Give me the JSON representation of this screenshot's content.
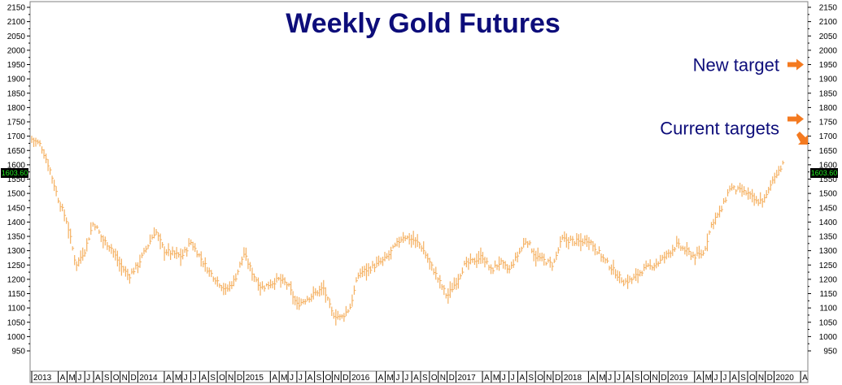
{
  "chart_data": {
    "type": "ohlc",
    "title": "Weekly Gold Futures",
    "ylim": [
      950,
      2150
    ],
    "y_ticks": [
      950,
      1000,
      1050,
      1100,
      1150,
      1200,
      1250,
      1300,
      1350,
      1400,
      1450,
      1500,
      1550,
      1600,
      1650,
      1700,
      1750,
      1800,
      1850,
      1900,
      1950,
      2000,
      2050,
      2100,
      2150
    ],
    "current_price_label": "1603.60",
    "x_month_labels": [
      "2013",
      "A",
      "M",
      "J",
      "J",
      "A",
      "S",
      "O",
      "N",
      "D",
      "2014",
      "A",
      "M",
      "J",
      "J",
      "A",
      "S",
      "O",
      "N",
      "D",
      "2015",
      "A",
      "M",
      "J",
      "J",
      "A",
      "S",
      "O",
      "N",
      "D",
      "2016",
      "A",
      "M",
      "J",
      "J",
      "A",
      "S",
      "O",
      "N",
      "D",
      "2017",
      "A",
      "M",
      "J",
      "J",
      "A",
      "S",
      "O",
      "N",
      "D",
      "2018",
      "A",
      "M",
      "J",
      "J",
      "A",
      "S",
      "O",
      "N",
      "D",
      "2019",
      "A",
      "M",
      "J",
      "J",
      "A",
      "S",
      "O",
      "N",
      "D",
      "2020",
      "A"
    ],
    "series": [
      {
        "color": "#f5b060",
        "waypoints": [
          {
            "date": "2013-01",
            "value": 1690
          },
          {
            "date": "2013-02",
            "value": 1670
          },
          {
            "date": "2013-03",
            "value": 1590
          },
          {
            "date": "2013-04",
            "value": 1480
          },
          {
            "date": "2013-05",
            "value": 1400
          },
          {
            "date": "2013-06",
            "value": 1250
          },
          {
            "date": "2013-07",
            "value": 1300
          },
          {
            "date": "2013-08",
            "value": 1400
          },
          {
            "date": "2013-09",
            "value": 1340
          },
          {
            "date": "2013-10",
            "value": 1310
          },
          {
            "date": "2013-11",
            "value": 1250
          },
          {
            "date": "2013-12",
            "value": 1210
          },
          {
            "date": "2014-01",
            "value": 1250
          },
          {
            "date": "2014-03",
            "value": 1370
          },
          {
            "date": "2014-04",
            "value": 1300
          },
          {
            "date": "2014-06",
            "value": 1280
          },
          {
            "date": "2014-07",
            "value": 1330
          },
          {
            "date": "2014-09",
            "value": 1230
          },
          {
            "date": "2014-11",
            "value": 1160
          },
          {
            "date": "2014-12",
            "value": 1200
          },
          {
            "date": "2015-01",
            "value": 1290
          },
          {
            "date": "2015-02",
            "value": 1220
          },
          {
            "date": "2015-03",
            "value": 1170
          },
          {
            "date": "2015-05",
            "value": 1200
          },
          {
            "date": "2015-06",
            "value": 1180
          },
          {
            "date": "2015-07",
            "value": 1110
          },
          {
            "date": "2015-08",
            "value": 1130
          },
          {
            "date": "2015-10",
            "value": 1170
          },
          {
            "date": "2015-11",
            "value": 1080
          },
          {
            "date": "2015-12",
            "value": 1065
          },
          {
            "date": "2016-01",
            "value": 1100
          },
          {
            "date": "2016-02",
            "value": 1220
          },
          {
            "date": "2016-04",
            "value": 1250
          },
          {
            "date": "2016-05",
            "value": 1270
          },
          {
            "date": "2016-07",
            "value": 1350
          },
          {
            "date": "2016-08",
            "value": 1340
          },
          {
            "date": "2016-09",
            "value": 1320
          },
          {
            "date": "2016-10",
            "value": 1260
          },
          {
            "date": "2016-11",
            "value": 1200
          },
          {
            "date": "2016-12",
            "value": 1140
          },
          {
            "date": "2017-01",
            "value": 1190
          },
          {
            "date": "2017-02",
            "value": 1250
          },
          {
            "date": "2017-04",
            "value": 1280
          },
          {
            "date": "2017-05",
            "value": 1230
          },
          {
            "date": "2017-06",
            "value": 1260
          },
          {
            "date": "2017-07",
            "value": 1230
          },
          {
            "date": "2017-09",
            "value": 1340
          },
          {
            "date": "2017-10",
            "value": 1280
          },
          {
            "date": "2017-12",
            "value": 1250
          },
          {
            "date": "2018-01",
            "value": 1340
          },
          {
            "date": "2018-03",
            "value": 1330
          },
          {
            "date": "2018-04",
            "value": 1340
          },
          {
            "date": "2018-05",
            "value": 1300
          },
          {
            "date": "2018-06",
            "value": 1260
          },
          {
            "date": "2018-08",
            "value": 1190
          },
          {
            "date": "2018-09",
            "value": 1200
          },
          {
            "date": "2018-10",
            "value": 1230
          },
          {
            "date": "2018-12",
            "value": 1260
          },
          {
            "date": "2019-02",
            "value": 1320
          },
          {
            "date": "2019-04",
            "value": 1280
          },
          {
            "date": "2019-05",
            "value": 1290
          },
          {
            "date": "2019-06",
            "value": 1400
          },
          {
            "date": "2019-07",
            "value": 1440
          },
          {
            "date": "2019-08",
            "value": 1520
          },
          {
            "date": "2019-09",
            "value": 1510
          },
          {
            "date": "2019-10",
            "value": 1500
          },
          {
            "date": "2019-11",
            "value": 1470
          },
          {
            "date": "2019-12",
            "value": 1480
          },
          {
            "date": "2020-01",
            "value": 1560
          },
          {
            "date": "2020-02",
            "value": 1600
          }
        ]
      }
    ],
    "annotations": [
      {
        "text": "New target",
        "target_value": 1950,
        "arrow_color": "#f47a20"
      },
      {
        "text": "Current targets",
        "target_value": 1760,
        "arrow_color": "#f47a20"
      },
      {
        "text": "",
        "target_value": 1665,
        "arrow_color": "#f47a20"
      }
    ]
  }
}
